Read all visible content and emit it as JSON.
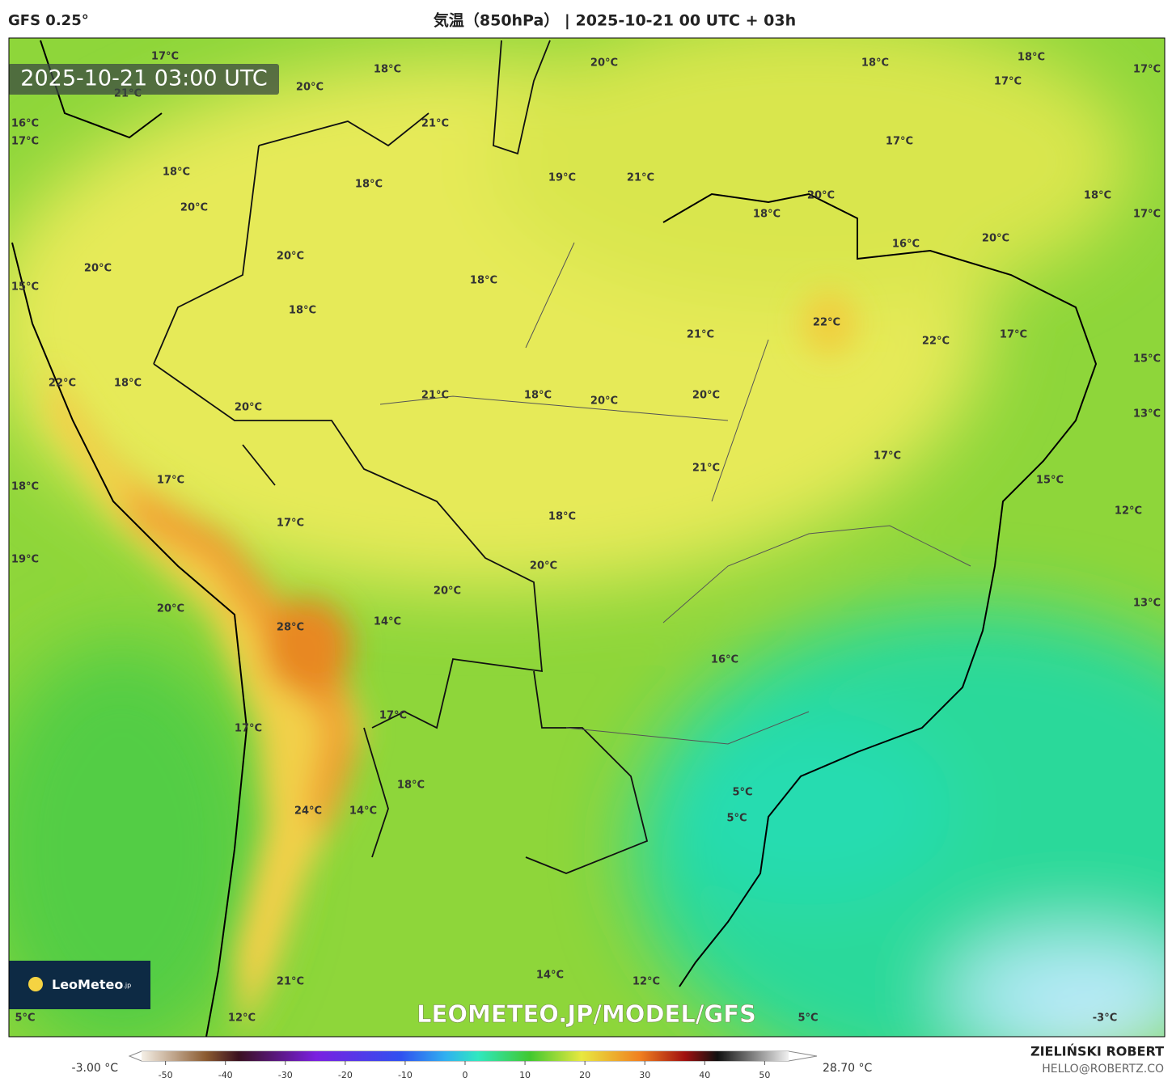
{
  "header": {
    "model": "GFS 0.25°",
    "title": "気温（850hPa） | 2025-10-21 00 UTC + 03h"
  },
  "map": {
    "timestamp": "2025-10-21 03:00 UTC",
    "watermark": "LEOMETEO.JP/MODEL/GFS",
    "logo": {
      "name": "LeoMeteo",
      "suffix": ".jp"
    },
    "labels": [
      "17°C",
      "18°C",
      "20°C",
      "18°C",
      "18°C",
      "17°C",
      "17°C",
      "20°C",
      "21°C",
      "16°C",
      "17°C",
      "21°C",
      "17°C",
      "18°C",
      "18°C",
      "19°C",
      "21°C",
      "18°C",
      "17°C",
      "20°C",
      "20°C",
      "18°C",
      "20°C",
      "16°C",
      "20°C",
      "20°C",
      "18°C",
      "15°C",
      "18°C",
      "22°C",
      "21°C",
      "22°C",
      "17°C",
      "15°C",
      "22°C",
      "18°C",
      "21°C",
      "18°C",
      "20°C",
      "20°C",
      "20°C",
      "13°C",
      "17°C",
      "21°C",
      "17°C",
      "15°C",
      "18°C",
      "12°C",
      "18°C",
      "17°C",
      "19°C",
      "20°C",
      "20°C",
      "20°C",
      "13°C",
      "14°C",
      "28°C",
      "16°C",
      "17°C",
      "17°C",
      "18°C",
      "5°C",
      "24°C",
      "14°C",
      "5°C",
      "14°C",
      "12°C",
      "21°C",
      "5°C",
      "12°C",
      "5°C",
      "-3°C"
    ]
  },
  "colorbar": {
    "min_label": "-3.00 °C",
    "max_label": "28.70 °C",
    "range": [
      -54,
      54
    ],
    "ticks": [
      -50,
      -40,
      -30,
      -20,
      -10,
      0,
      10,
      20,
      30,
      40,
      50
    ]
  },
  "footer": {
    "author": "ZIELIŃSKI ROBERT",
    "email": "HELLO@ROBERTZ.CO"
  }
}
